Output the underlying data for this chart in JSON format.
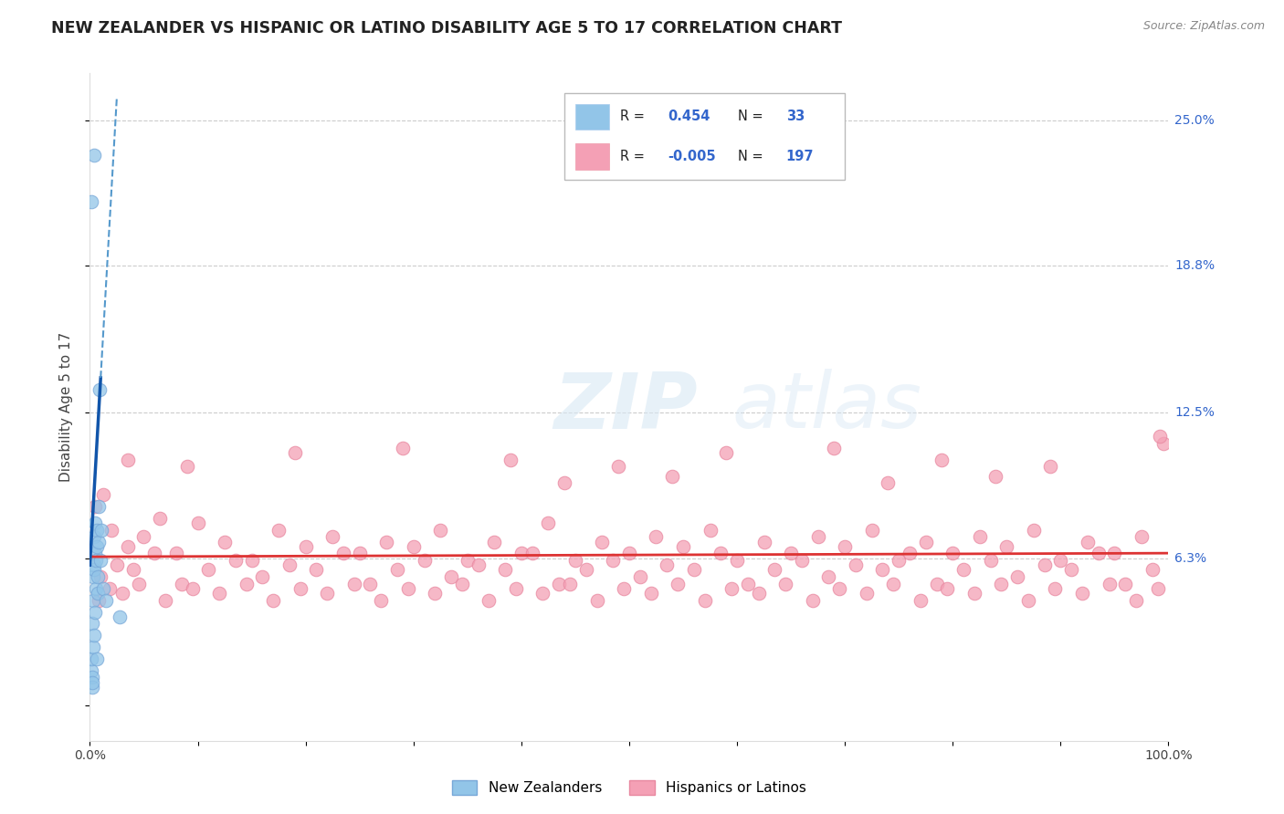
{
  "title": "NEW ZEALANDER VS HISPANIC OR LATINO DISABILITY AGE 5 TO 17 CORRELATION CHART",
  "source": "Source: ZipAtlas.com",
  "ylabel": "Disability Age 5 to 17",
  "xlim": [
    0,
    100
  ],
  "ylim": [
    -1.5,
    27.0
  ],
  "ytick_values": [
    0,
    6.3,
    12.5,
    18.8,
    25.0
  ],
  "ytick_labels": [
    "",
    "6.3%",
    "12.5%",
    "18.8%",
    "25.0%"
  ],
  "xtick_values": [
    0,
    10,
    20,
    30,
    40,
    50,
    60,
    70,
    80,
    90,
    100
  ],
  "xtick_labels": [
    "0.0%",
    "",
    "",
    "",
    "",
    "",
    "",
    "",
    "",
    "",
    "100.0%"
  ],
  "blue_color": "#92C5E8",
  "pink_color": "#F4A0B5",
  "trend_blue_solid_color": "#1155AA",
  "trend_blue_dashed_color": "#5599CC",
  "trend_pink_color": "#DD3333",
  "background_color": "#FFFFFF",
  "grid_color": "#CCCCCC",
  "watermark_zip": "ZIP",
  "watermark_atlas": "atlas",
  "title_fontsize": 12.5,
  "axis_label_fontsize": 11,
  "tick_fontsize": 10,
  "blue_scatter_x": [
    0.1,
    0.15,
    0.18,
    0.2,
    0.22,
    0.25,
    0.28,
    0.3,
    0.32,
    0.35,
    0.38,
    0.4,
    0.42,
    0.45,
    0.48,
    0.5,
    0.52,
    0.55,
    0.6,
    0.65,
    0.7,
    0.75,
    0.8,
    0.85,
    0.9,
    1.0,
    1.1,
    1.2,
    1.5,
    2.8,
    0.12,
    0.35,
    0.6
  ],
  "blue_scatter_y": [
    1.5,
    2.0,
    1.2,
    0.8,
    1.0,
    3.5,
    2.5,
    5.5,
    4.5,
    6.0,
    3.0,
    7.2,
    5.8,
    6.5,
    4.0,
    7.8,
    6.2,
    5.0,
    6.8,
    7.5,
    5.5,
    4.8,
    7.0,
    8.5,
    13.5,
    6.2,
    7.5,
    5.0,
    4.5,
    3.8,
    21.5,
    23.5,
    2.0
  ],
  "pink_scatter_x": [
    0.5,
    1.2,
    2.0,
    3.5,
    5.0,
    6.5,
    8.0,
    10.0,
    12.5,
    15.0,
    17.5,
    20.0,
    22.5,
    25.0,
    27.5,
    30.0,
    32.5,
    35.0,
    37.5,
    40.0,
    42.5,
    45.0,
    47.5,
    50.0,
    52.5,
    55.0,
    57.5,
    60.0,
    62.5,
    65.0,
    67.5,
    70.0,
    72.5,
    75.0,
    77.5,
    80.0,
    82.5,
    85.0,
    87.5,
    90.0,
    92.5,
    95.0,
    97.5,
    99.5,
    1.0,
    2.5,
    4.0,
    6.0,
    8.5,
    11.0,
    13.5,
    16.0,
    18.5,
    21.0,
    23.5,
    26.0,
    28.5,
    31.0,
    33.5,
    36.0,
    38.5,
    41.0,
    43.5,
    46.0,
    48.5,
    51.0,
    53.5,
    56.0,
    58.5,
    61.0,
    63.5,
    66.0,
    68.5,
    71.0,
    73.5,
    76.0,
    78.5,
    81.0,
    83.5,
    86.0,
    88.5,
    91.0,
    93.5,
    96.0,
    98.5,
    0.8,
    1.8,
    3.0,
    4.5,
    7.0,
    9.5,
    12.0,
    14.5,
    17.0,
    19.5,
    22.0,
    24.5,
    27.0,
    29.5,
    32.0,
    34.5,
    37.0,
    39.5,
    42.0,
    44.5,
    47.0,
    49.5,
    52.0,
    54.5,
    57.0,
    59.5,
    62.0,
    64.5,
    67.0,
    69.5,
    72.0,
    74.5,
    77.0,
    79.5,
    82.0,
    84.5,
    87.0,
    89.5,
    92.0,
    94.5,
    97.0,
    99.0,
    3.5,
    9.0,
    19.0,
    29.0,
    39.0,
    49.0,
    59.0,
    69.0,
    79.0,
    89.0,
    99.2,
    44.0,
    54.0,
    74.0,
    84.0
  ],
  "pink_scatter_y": [
    8.5,
    9.0,
    7.5,
    6.8,
    7.2,
    8.0,
    6.5,
    7.8,
    7.0,
    6.2,
    7.5,
    6.8,
    7.2,
    6.5,
    7.0,
    6.8,
    7.5,
    6.2,
    7.0,
    6.5,
    7.8,
    6.2,
    7.0,
    6.5,
    7.2,
    6.8,
    7.5,
    6.2,
    7.0,
    6.5,
    7.2,
    6.8,
    7.5,
    6.2,
    7.0,
    6.5,
    7.2,
    6.8,
    7.5,
    6.2,
    7.0,
    6.5,
    7.2,
    11.2,
    5.5,
    6.0,
    5.8,
    6.5,
    5.2,
    5.8,
    6.2,
    5.5,
    6.0,
    5.8,
    6.5,
    5.2,
    5.8,
    6.2,
    5.5,
    6.0,
    5.8,
    6.5,
    5.2,
    5.8,
    6.2,
    5.5,
    6.0,
    5.8,
    6.5,
    5.2,
    5.8,
    6.2,
    5.5,
    6.0,
    5.8,
    6.5,
    5.2,
    5.8,
    6.2,
    5.5,
    6.0,
    5.8,
    6.5,
    5.2,
    5.8,
    4.5,
    5.0,
    4.8,
    5.2,
    4.5,
    5.0,
    4.8,
    5.2,
    4.5,
    5.0,
    4.8,
    5.2,
    4.5,
    5.0,
    4.8,
    5.2,
    4.5,
    5.0,
    4.8,
    5.2,
    4.5,
    5.0,
    4.8,
    5.2,
    4.5,
    5.0,
    4.8,
    5.2,
    4.5,
    5.0,
    4.8,
    5.2,
    4.5,
    5.0,
    4.8,
    5.2,
    4.5,
    5.0,
    4.8,
    5.2,
    4.5,
    5.0,
    10.5,
    10.2,
    10.8,
    11.0,
    10.5,
    10.2,
    10.8,
    11.0,
    10.5,
    10.2,
    11.5,
    9.5,
    9.8,
    9.5,
    9.8
  ]
}
